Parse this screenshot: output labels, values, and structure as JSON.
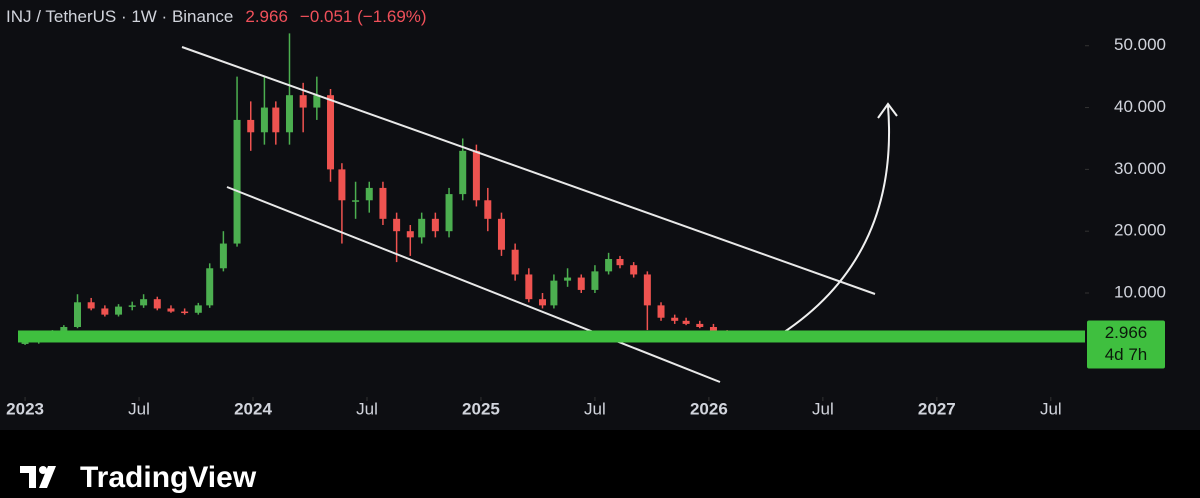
{
  "chart_data": {
    "type": "candlestick",
    "title": "INJ / TetherUS · 1W · Binance",
    "last_price": 2.966,
    "change": "−0.051 (−1.69%)",
    "countdown": "4d 7h",
    "brand": "TradingView",
    "up_color": "#4caf50",
    "down_color": "#ef5350",
    "zone_color": "#3fbf3f",
    "x": [
      2023.0,
      2023.06,
      2023.12,
      2023.17,
      2023.23,
      2023.29,
      2023.35,
      2023.41,
      2023.47,
      2023.52,
      2023.58,
      2023.64,
      2023.7,
      2023.76,
      2023.81,
      2023.87,
      2023.93,
      2023.99,
      2024.05,
      2024.1,
      2024.16,
      2024.22,
      2024.28,
      2024.34,
      2024.39,
      2024.45,
      2024.51,
      2024.57,
      2024.63,
      2024.69,
      2024.74,
      2024.8,
      2024.86,
      2024.92,
      2024.98,
      2025.03,
      2025.09,
      2025.15,
      2025.21,
      2025.27,
      2025.32,
      2025.38,
      2025.44,
      2025.5,
      2025.56,
      2025.61,
      2025.67,
      2025.73,
      2025.79,
      2025.85,
      2025.9,
      2025.96,
      2026.02,
      2026.08,
      2026.14,
      2026.2
    ],
    "open": [
      1.8,
      2.0,
      3.0,
      3.8,
      4.5,
      8.5,
      7.5,
      6.5,
      7.8,
      8.0,
      9.0,
      7.5,
      7.0,
      6.8,
      8.0,
      14.0,
      18.0,
      38.0,
      36.0,
      40.0,
      36.0,
      42.0,
      40.0,
      42.0,
      30.0,
      25.0,
      25.0,
      27.0,
      22.0,
      20.0,
      19.0,
      22.0,
      20.0,
      26.0,
      33.0,
      25.0,
      22.0,
      17.0,
      13.0,
      9.0,
      8.0,
      12.0,
      12.5,
      10.5,
      13.5,
      15.5,
      14.5,
      13.0,
      8.0,
      6.0,
      5.5,
      5.0,
      4.5,
      3.8,
      3.4,
      3.2
    ],
    "high": [
      2.3,
      3.3,
      4.0,
      4.8,
      9.8,
      9.2,
      8.0,
      8.2,
      8.6,
      9.8,
      9.4,
      8.0,
      7.5,
      8.4,
      14.8,
      20.0,
      45.0,
      41.0,
      45.0,
      41.0,
      52.0,
      44.0,
      45.0,
      43.0,
      31.0,
      28.0,
      28.0,
      28.0,
      23.0,
      21.0,
      23.0,
      23.0,
      27.0,
      35.0,
      34.0,
      27.0,
      23.0,
      18.0,
      14.0,
      10.0,
      13.0,
      14.0,
      13.0,
      14.5,
      16.5,
      16.0,
      15.0,
      13.5,
      8.5,
      6.5,
      6.0,
      5.5,
      5.0,
      4.0,
      3.6,
      3.4
    ],
    "low": [
      1.6,
      1.8,
      2.8,
      3.6,
      4.3,
      7.2,
      6.2,
      6.2,
      7.2,
      7.6,
      7.2,
      6.8,
      6.5,
      6.5,
      7.6,
      13.5,
      17.5,
      33.0,
      34.0,
      34.0,
      34.0,
      36.0,
      38.0,
      28.0,
      18.0,
      22.0,
      23.0,
      21.0,
      15.0,
      16.0,
      18.0,
      19.0,
      19.0,
      25.0,
      24.0,
      20.0,
      16.0,
      12.0,
      8.5,
      7.5,
      7.5,
      11.0,
      10.0,
      10.0,
      13.0,
      14.0,
      12.5,
      4.0,
      5.5,
      5.0,
      4.8,
      4.3,
      3.6,
      3.2,
      3.0,
      2.9
    ],
    "close": [
      2.0,
      3.0,
      3.8,
      4.5,
      8.5,
      7.5,
      6.5,
      7.8,
      8.0,
      9.0,
      7.5,
      7.0,
      6.8,
      8.0,
      14.0,
      18.0,
      38.0,
      36.0,
      40.0,
      36.0,
      42.0,
      40.0,
      42.0,
      30.0,
      25.0,
      25.0,
      27.0,
      22.0,
      20.0,
      19.0,
      22.0,
      20.0,
      26.0,
      33.0,
      25.0,
      22.0,
      17.0,
      13.0,
      9.0,
      8.0,
      12.0,
      12.5,
      10.5,
      13.5,
      15.5,
      14.5,
      13.0,
      8.0,
      6.0,
      5.5,
      5.0,
      4.5,
      3.8,
      3.4,
      3.2,
      2.966
    ],
    "xlim": [
      2022.89,
      2027.65
    ],
    "ylim": [
      -6.5,
      57.4
    ],
    "xticks": [
      {
        "value": 2023,
        "label": "2023"
      },
      {
        "value": 2023.5,
        "label": "Jul"
      },
      {
        "value": 2024,
        "label": "2024"
      },
      {
        "value": 2024.5,
        "label": "Jul"
      },
      {
        "value": 2025,
        "label": "2025"
      },
      {
        "value": 2025.5,
        "label": "Jul"
      },
      {
        "value": 2026,
        "label": "2026"
      },
      {
        "value": 2026.5,
        "label": "Jul"
      },
      {
        "value": 2027,
        "label": "2027"
      },
      {
        "value": 2027.5,
        "label": "Jul"
      }
    ],
    "yticks": [
      {
        "value": 10,
        "label": "10.000"
      },
      {
        "value": 20,
        "label": "20.000"
      },
      {
        "value": 30,
        "label": "30.000"
      },
      {
        "value": 40,
        "label": "40.000"
      },
      {
        "value": 50,
        "label": "50.000"
      }
    ]
  }
}
